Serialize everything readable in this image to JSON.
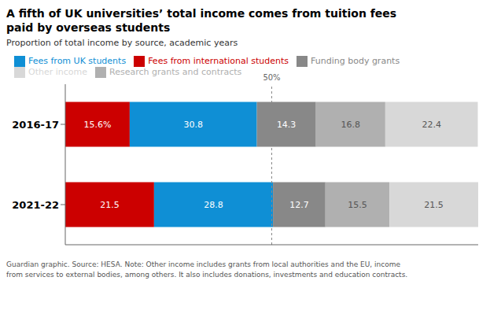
{
  "chart_data": {
    "type": "bar",
    "orientation": "horizontal",
    "stacked": true,
    "data_labels": true,
    "title": "A fifth of UK universities’ total income comes from tuition fees\npaid by overseas students",
    "subtitle": "Proportion of total income by source, academic years",
    "categories": [
      "2016-17",
      "2021-22"
    ],
    "series": [
      {
        "name": "Fees from international students",
        "color": "#cc0000",
        "values": [
          15.6,
          21.5
        ],
        "value_labels": [
          "15.6%",
          "21.5"
        ]
      },
      {
        "name": "Fees from UK students",
        "color": "#0f8fd5",
        "values": [
          30.8,
          28.8
        ],
        "value_labels": [
          "30.8",
          "28.8"
        ]
      },
      {
        "name": "Funding body grants",
        "color": "#888888",
        "values": [
          14.3,
          12.7
        ],
        "value_labels": [
          "14.3",
          "12.7"
        ]
      },
      {
        "name": "Research grants and contracts",
        "color": "#b0b0b0",
        "values": [
          16.8,
          15.5
        ],
        "value_labels": [
          "16.8",
          "15.5"
        ]
      },
      {
        "name": "Other income",
        "color": "#d8d8d8",
        "values": [
          22.4,
          21.5
        ],
        "value_labels": [
          "22.4",
          "21.5"
        ]
      }
    ],
    "xlim": [
      0,
      100
    ],
    "tick_labels": false,
    "legend": "top",
    "annotations": [
      {
        "x": 50,
        "label": "50%"
      }
    ],
    "footnote": "Guardian graphic. Source: HESA. Note: Other income includes grants from local authorities and the EU, income\nfrom services to external bodies, among others. It also includes donations, investments and education contracts."
  }
}
